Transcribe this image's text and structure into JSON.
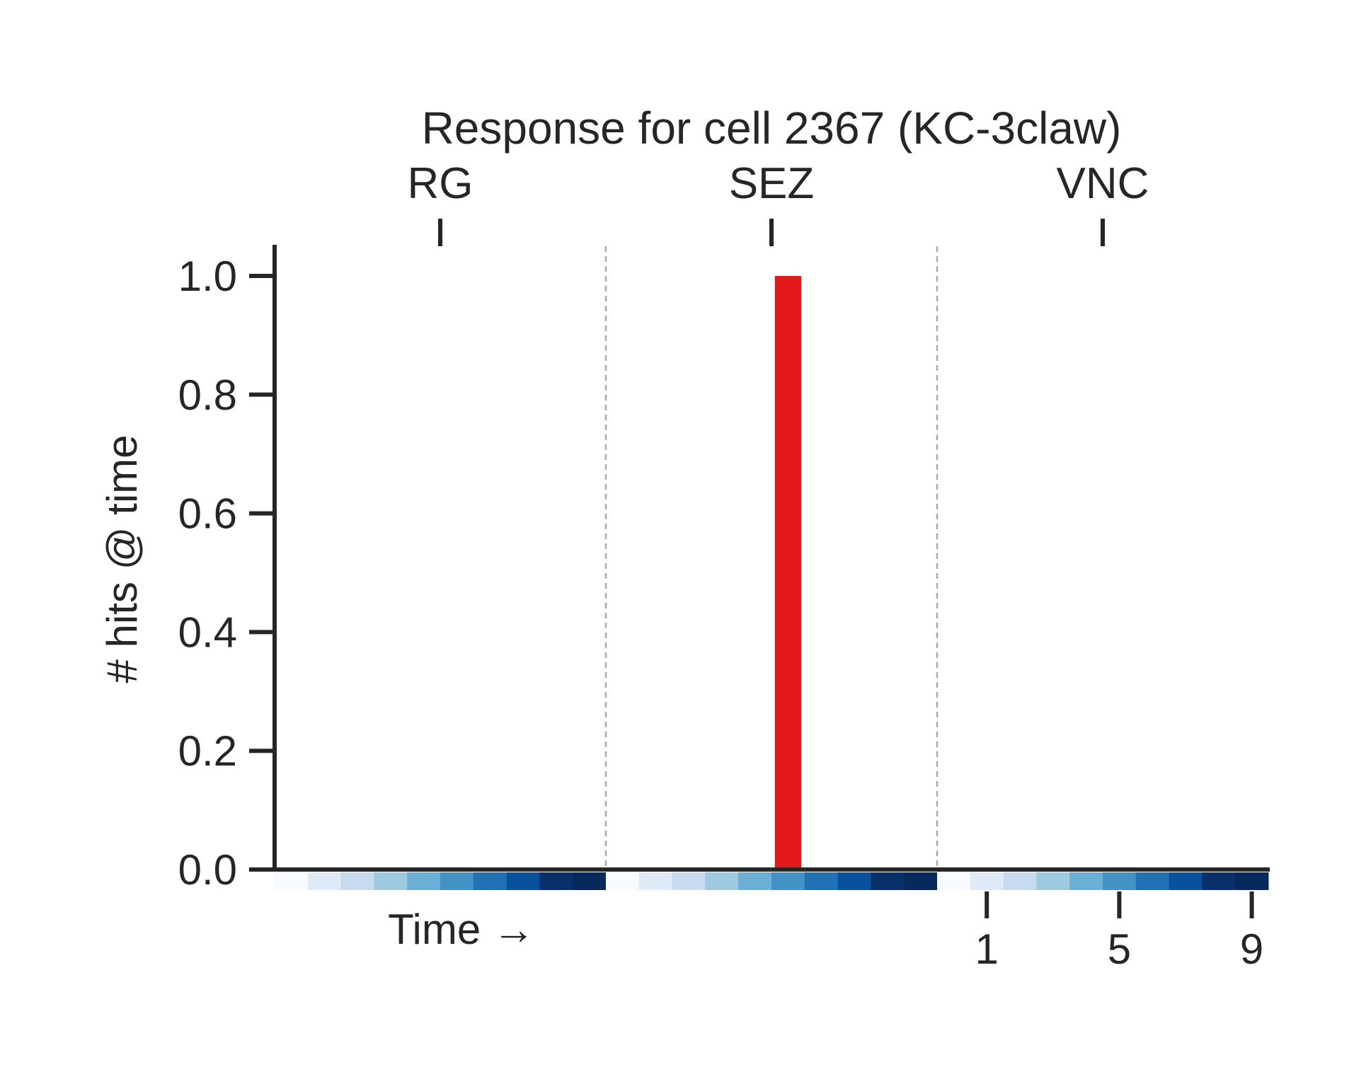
{
  "chart_data": {
    "type": "bar",
    "title": "Response for cell 2367 (KC-3claw)",
    "ylabel": "# hits @ time",
    "xlabel": "Time →",
    "ylim": [
      0,
      1.05
    ],
    "yticks": [
      "0.0",
      "0.2",
      "0.4",
      "0.6",
      "0.8",
      "1.0"
    ],
    "ytick_values": [
      0,
      0.2,
      0.4,
      0.6,
      0.8,
      1.0
    ],
    "groups": [
      {
        "label": "RG",
        "values": [
          0,
          0,
          0,
          0,
          0,
          0,
          0,
          0,
          0,
          0
        ]
      },
      {
        "label": "SEZ",
        "values": [
          0,
          0,
          0,
          0,
          0,
          1.0,
          0,
          0,
          0,
          0
        ]
      },
      {
        "label": "VNC",
        "values": [
          0,
          0,
          0,
          0,
          0,
          0,
          0,
          0,
          0,
          0
        ]
      }
    ],
    "time_steps_per_group": 10,
    "bottom_ticks": [
      {
        "label": "1",
        "step": 1
      },
      {
        "label": "5",
        "step": 5
      },
      {
        "label": "9",
        "step": 9
      }
    ],
    "bar_color": "#e3191c",
    "time_colors": [
      "#f7fbff",
      "#deebf7",
      "#c6dbef",
      "#9ecae1",
      "#6baed6",
      "#4292c6",
      "#2171b5",
      "#08519c",
      "#08306b",
      "#062a5c"
    ],
    "divider_color": "#aaaaaa",
    "axis_color": "#262626",
    "grid": false
  }
}
